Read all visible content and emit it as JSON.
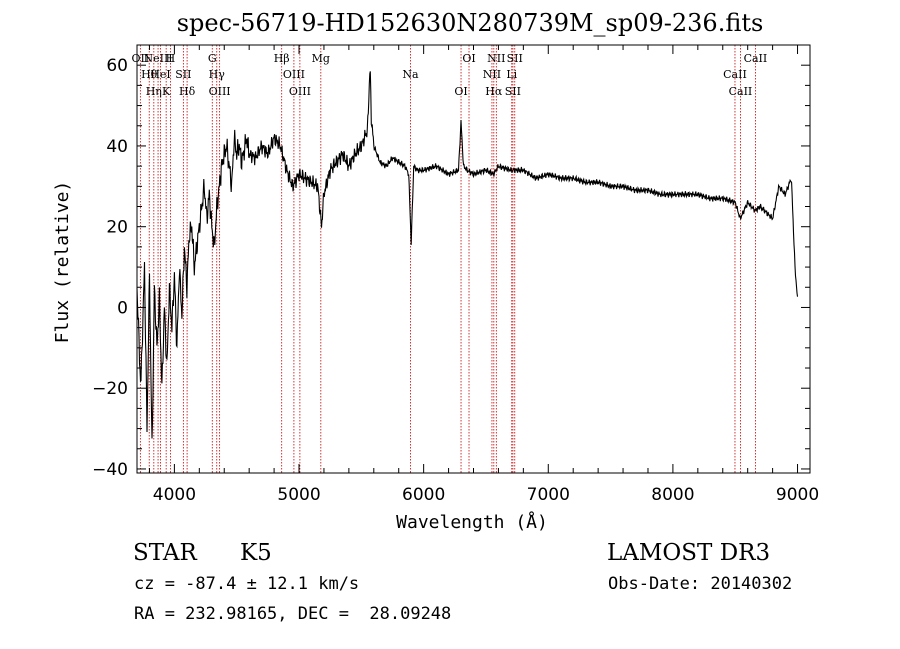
{
  "chart_data": {
    "type": "line",
    "title": "spec-56719-HD152630N280739M_sp09-236.fits",
    "xlabel": "Wavelength (Å)",
    "ylabel": "Flux (relative)",
    "xlim": [
      3700,
      9100
    ],
    "ylim": [
      -41,
      65
    ],
    "x_ticks": [
      4000,
      5000,
      6000,
      7000,
      8000,
      9000
    ],
    "x_tick_labels": [
      "4000",
      "5000",
      "6000",
      "7000",
      "8000",
      "9000"
    ],
    "y_ticks": [
      -40,
      -20,
      0,
      20,
      40,
      60
    ],
    "y_tick_labels": [
      "−40",
      "−20",
      "0",
      "20",
      "40",
      "60"
    ],
    "series": [
      {
        "name": "flux",
        "x": [
          3700,
          3730,
          3760,
          3780,
          3800,
          3820,
          3840,
          3860,
          3880,
          3900,
          3920,
          3940,
          3960,
          3980,
          4000,
          4020,
          4040,
          4060,
          4080,
          4100,
          4120,
          4140,
          4160,
          4180,
          4200,
          4220,
          4240,
          4260,
          4280,
          4300,
          4320,
          4340,
          4360,
          4380,
          4400,
          4420,
          4440,
          4460,
          4480,
          4500,
          4520,
          4540,
          4560,
          4580,
          4600,
          4650,
          4700,
          4750,
          4800,
          4850,
          4900,
          4950,
          5000,
          5050,
          5100,
          5150,
          5180,
          5200,
          5250,
          5300,
          5350,
          5400,
          5450,
          5500,
          5550,
          5570,
          5580,
          5600,
          5650,
          5700,
          5750,
          5800,
          5850,
          5880,
          5900,
          5920,
          5950,
          6000,
          6100,
          6200,
          6280,
          6300,
          6320,
          6350,
          6400,
          6500,
          6560,
          6600,
          6700,
          6800,
          6900,
          7000,
          7100,
          7200,
          7300,
          7400,
          7500,
          7600,
          7700,
          7800,
          7900,
          8000,
          8100,
          8200,
          8300,
          8400,
          8500,
          8540,
          8600,
          8660,
          8700,
          8800,
          8850,
          8900,
          8950,
          8980,
          9000
        ],
        "values": [
          5,
          -20,
          10,
          -30,
          8,
          -35,
          5,
          -10,
          2,
          -20,
          0,
          -15,
          5,
          -5,
          8,
          -10,
          10,
          -2,
          15,
          5,
          18,
          20,
          10,
          15,
          20,
          25,
          30,
          22,
          28,
          20,
          15,
          25,
          30,
          35,
          38,
          40,
          35,
          30,
          42,
          38,
          40,
          36,
          39,
          42,
          38,
          37,
          40,
          38,
          42,
          40,
          34,
          30,
          33,
          32,
          31,
          30,
          20,
          28,
          34,
          36,
          38,
          35,
          38,
          40,
          44,
          60,
          47,
          40,
          36,
          35,
          37,
          36,
          35,
          33,
          16,
          35,
          34,
          34,
          35,
          33,
          34,
          46,
          35,
          34,
          33,
          34,
          33,
          35,
          34,
          34,
          32,
          33,
          32,
          32,
          31,
          31,
          30,
          30,
          29,
          29,
          28,
          28,
          28,
          28,
          27,
          27,
          26,
          22,
          26,
          24,
          25,
          22,
          30,
          28,
          32,
          10,
          2
        ]
      }
    ],
    "lines": [
      {
        "wavelength": 3727,
        "labels": [
          "OII"
        ]
      },
      {
        "wavelength": 3798,
        "labels": [
          "Hθ"
        ]
      },
      {
        "wavelength": 3835,
        "labels": [
          "Hη"
        ]
      },
      {
        "wavelength": 3869,
        "labels": [
          "NeIII"
        ]
      },
      {
        "wavelength": 3889,
        "labels": [
          "HeI"
        ]
      },
      {
        "wavelength": 3934,
        "labels": [
          "K"
        ]
      },
      {
        "wavelength": 3968,
        "labels": [
          "H"
        ]
      },
      {
        "wavelength": 4072,
        "labels": [
          "SII"
        ]
      },
      {
        "wavelength": 4102,
        "labels": [
          "Hδ"
        ]
      },
      {
        "wavelength": 4304,
        "labels": [
          "G"
        ]
      },
      {
        "wavelength": 4340,
        "labels": [
          "Hγ"
        ]
      },
      {
        "wavelength": 4363,
        "labels": [
          "OIII"
        ]
      },
      {
        "wavelength": 4861,
        "labels": [
          "Hβ"
        ]
      },
      {
        "wavelength": 4959,
        "labels": [
          "OIII"
        ]
      },
      {
        "wavelength": 5007,
        "labels": [
          "OIII"
        ]
      },
      {
        "wavelength": 5175,
        "labels": [
          "Mg"
        ]
      },
      {
        "wavelength": 5894,
        "labels": [
          "Na"
        ]
      },
      {
        "wavelength": 6300,
        "labels": [
          "OI"
        ]
      },
      {
        "wavelength": 6364,
        "labels": [
          "OI"
        ]
      },
      {
        "wavelength": 6548,
        "labels": [
          "NII"
        ]
      },
      {
        "wavelength": 6563,
        "labels": [
          "Hα"
        ]
      },
      {
        "wavelength": 6583,
        "labels": [
          "NII"
        ]
      },
      {
        "wavelength": 6707,
        "labels": [
          "Li"
        ]
      },
      {
        "wavelength": 6716,
        "labels": [
          "SII"
        ]
      },
      {
        "wavelength": 6731,
        "labels": [
          "SII"
        ]
      },
      {
        "wavelength": 8498,
        "labels": [
          "CaII"
        ]
      },
      {
        "wavelength": 8542,
        "labels": [
          "CaII"
        ]
      },
      {
        "wavelength": 8662,
        "labels": [
          "CaII"
        ]
      }
    ],
    "colors": {
      "spectrum": "#000000",
      "line_marker": "#cc0000"
    }
  },
  "info": {
    "class_label": "STAR",
    "subclass_label": "K5",
    "survey_label": "LAMOST DR3",
    "cz_text": "cz = -87.4 ± 12.1 km/s",
    "obs_date_text": "Obs-Date: 20140302",
    "radec_text": "RA = 232.98165, DEC =  28.09248"
  }
}
